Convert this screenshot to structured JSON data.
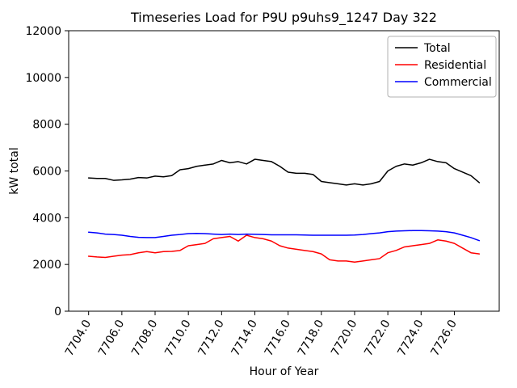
{
  "chart_data": {
    "type": "line",
    "title": "Timeseries Load for P9U p9uhs9_1247  Day 322",
    "xlabel": "Hour of Year",
    "ylabel": "kW total",
    "xlim": [
      7702.8,
      7728.7
    ],
    "ylim": [
      0,
      12000
    ],
    "grid": false,
    "legend_position": "upper right",
    "xticks": {
      "values": [
        7704,
        7706,
        7708,
        7710,
        7712,
        7714,
        7716,
        7718,
        7720,
        7722,
        7724,
        7726
      ],
      "labels": [
        "7704.0",
        "7706.0",
        "7708.0",
        "7710.0",
        "7712.0",
        "7714.0",
        "7716.0",
        "7718.0",
        "7720.0",
        "7722.0",
        "7724.0",
        "7726.0"
      ]
    },
    "yticks": {
      "values": [
        0,
        2000,
        4000,
        6000,
        8000,
        10000,
        12000
      ],
      "labels": [
        "0",
        "2000",
        "4000",
        "6000",
        "8000",
        "10000",
        "12000"
      ]
    },
    "x": [
      7704.0,
      7704.5,
      7705.0,
      7705.5,
      7706.0,
      7706.5,
      7707.0,
      7707.5,
      7708.0,
      7708.5,
      7709.0,
      7709.5,
      7710.0,
      7710.5,
      7711.0,
      7711.5,
      7712.0,
      7712.5,
      7713.0,
      7713.5,
      7714.0,
      7714.5,
      7715.0,
      7715.5,
      7716.0,
      7716.5,
      7717.0,
      7717.5,
      7718.0,
      7718.5,
      7719.0,
      7719.5,
      7720.0,
      7720.5,
      7721.0,
      7721.5,
      7722.0,
      7722.5,
      7723.0,
      7723.5,
      7724.0,
      7724.5,
      7725.0,
      7725.5,
      7726.0,
      7726.5,
      7727.0,
      7727.5
    ],
    "series": [
      {
        "name": "Total",
        "color": "#000000",
        "values": [
          5700,
          5680,
          5680,
          5600,
          5620,
          5650,
          5720,
          5700,
          5780,
          5750,
          5800,
          6050,
          6100,
          6200,
          6250,
          6300,
          6450,
          6350,
          6400,
          6300,
          6500,
          6450,
          6400,
          6200,
          5950,
          5900,
          5900,
          5850,
          5550,
          5500,
          5450,
          5400,
          5450,
          5400,
          5450,
          5550,
          6000,
          6200,
          6300,
          6250,
          6350,
          6500,
          6400,
          6350,
          6100,
          5950,
          5800,
          5500
        ]
      },
      {
        "name": "Residential",
        "color": "#ff0000",
        "values": [
          2350,
          2320,
          2300,
          2350,
          2400,
          2420,
          2500,
          2550,
          2500,
          2550,
          2560,
          2600,
          2800,
          2850,
          2900,
          3100,
          3150,
          3200,
          3000,
          3250,
          3150,
          3100,
          3000,
          2800,
          2700,
          2650,
          2600,
          2550,
          2450,
          2200,
          2150,
          2150,
          2100,
          2150,
          2200,
          2250,
          2500,
          2600,
          2750,
          2800,
          2850,
          2900,
          3050,
          3000,
          2900,
          2700,
          2500,
          2450
        ]
      },
      {
        "name": "Commercial",
        "color": "#0000ff",
        "values": [
          3380,
          3350,
          3300,
          3280,
          3250,
          3200,
          3160,
          3150,
          3150,
          3200,
          3250,
          3280,
          3320,
          3330,
          3320,
          3300,
          3280,
          3300,
          3280,
          3300,
          3290,
          3280,
          3270,
          3270,
          3270,
          3270,
          3260,
          3250,
          3250,
          3250,
          3250,
          3250,
          3260,
          3280,
          3320,
          3350,
          3400,
          3430,
          3440,
          3450,
          3450,
          3440,
          3430,
          3400,
          3350,
          3250,
          3150,
          3020
        ]
      }
    ]
  }
}
